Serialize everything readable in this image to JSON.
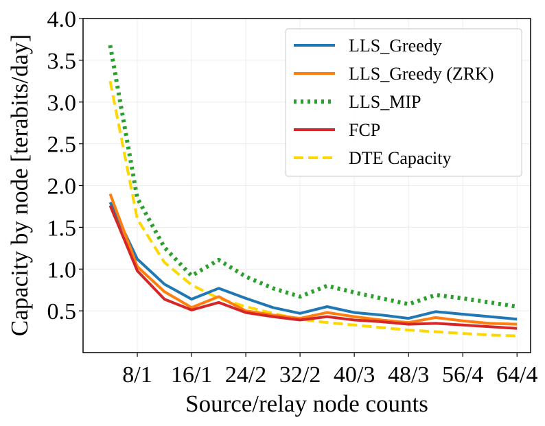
{
  "chart_data": {
    "type": "line",
    "title": "",
    "xlabel": "Source/relay node counts",
    "ylabel": "Capacity by node [terabits/day]",
    "x": [
      4,
      8,
      12,
      16,
      20,
      24,
      28,
      32,
      36,
      40,
      44,
      48,
      52,
      56,
      60,
      64
    ],
    "xlim": [
      0,
      66
    ],
    "ylim": [
      0,
      4.0
    ],
    "xticks": [
      {
        "value": 8,
        "label": "8/1"
      },
      {
        "value": 16,
        "label": "16/1"
      },
      {
        "value": 24,
        "label": "24/2"
      },
      {
        "value": 32,
        "label": "32/2"
      },
      {
        "value": 40,
        "label": "40/3"
      },
      {
        "value": 48,
        "label": "48/3"
      },
      {
        "value": 56,
        "label": "56/4"
      },
      {
        "value": 64,
        "label": "64/4"
      }
    ],
    "yticks": [
      {
        "value": 0.5,
        "label": "0.5"
      },
      {
        "value": 1.0,
        "label": "1.0"
      },
      {
        "value": 1.5,
        "label": "1.5"
      },
      {
        "value": 2.0,
        "label": "2.0"
      },
      {
        "value": 2.5,
        "label": "2.5"
      },
      {
        "value": 3.0,
        "label": "3.0"
      },
      {
        "value": 3.5,
        "label": "3.5"
      },
      {
        "value": 4.0,
        "label": "4.0"
      }
    ],
    "grid": true,
    "legend_position": "top-right",
    "series": [
      {
        "name": "LLS_Greedy",
        "color": "#1f77b4",
        "dash": "solid",
        "values": [
          1.8,
          1.12,
          0.82,
          0.64,
          0.77,
          0.65,
          0.54,
          0.47,
          0.55,
          0.48,
          0.45,
          0.41,
          0.49,
          0.46,
          0.43,
          0.4
        ]
      },
      {
        "name": "LLS_Greedy (ZRK)",
        "color": "#ff7f0e",
        "dash": "solid",
        "values": [
          1.9,
          1.03,
          0.73,
          0.54,
          0.67,
          0.5,
          0.45,
          0.41,
          0.48,
          0.43,
          0.39,
          0.36,
          0.42,
          0.38,
          0.35,
          0.34
        ]
      },
      {
        "name": "LLS_MIP",
        "color": "#2ca02c",
        "dash": "dotted",
        "values": [
          3.68,
          1.85,
          1.26,
          0.92,
          1.11,
          0.91,
          0.77,
          0.67,
          0.8,
          0.72,
          0.65,
          0.58,
          0.69,
          0.65,
          0.6,
          0.55
        ]
      },
      {
        "name": "FCP",
        "color": "#d62728",
        "dash": "solid",
        "values": [
          1.76,
          0.98,
          0.64,
          0.51,
          0.6,
          0.48,
          0.43,
          0.39,
          0.43,
          0.39,
          0.37,
          0.34,
          0.35,
          0.33,
          0.31,
          0.29
        ]
      },
      {
        "name": "DTE Capacity",
        "color": "#ffd700",
        "dash": "dashed",
        "values": [
          3.25,
          1.6,
          1.08,
          0.81,
          0.65,
          0.55,
          0.47,
          0.4,
          0.36,
          0.33,
          0.3,
          0.27,
          0.25,
          0.23,
          0.21,
          0.2
        ]
      }
    ]
  }
}
